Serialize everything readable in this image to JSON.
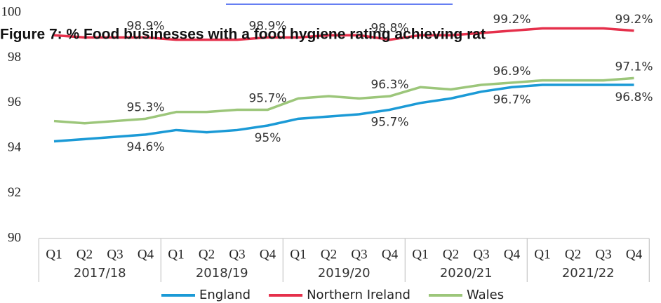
{
  "chart_data": {
    "type": "line",
    "title": "Figure 7: % Food businesses with a food hygiene rating achieving rat",
    "categories": [
      "Q1",
      "Q2",
      "Q3",
      "Q4",
      "Q1",
      "Q2",
      "Q3",
      "Q4",
      "Q1",
      "Q2",
      "Q3",
      "Q4",
      "Q1",
      "Q2",
      "Q3",
      "Q4",
      "Q1",
      "Q2",
      "Q3",
      "Q4"
    ],
    "category_groups": [
      "2017/18",
      "2018/19",
      "2019/20",
      "2020/21",
      "2021/22"
    ],
    "ylim": [
      90,
      100
    ],
    "yticks": [
      90,
      92,
      94,
      96,
      98,
      100
    ],
    "legend": "bottom",
    "series": [
      {
        "name": "England",
        "color": "#1b9ad6",
        "values": [
          94.3,
          94.4,
          94.5,
          94.6,
          94.8,
          94.7,
          94.8,
          95.0,
          95.3,
          95.4,
          95.5,
          95.7,
          96.0,
          96.2,
          96.5,
          96.7,
          96.8,
          96.8,
          96.8,
          96.8
        ],
        "value_labels": [
          null,
          null,
          null,
          "94.6%",
          null,
          null,
          null,
          "95%",
          null,
          null,
          null,
          "95.7%",
          null,
          null,
          null,
          "96.7%",
          null,
          null,
          null,
          "96.8%"
        ]
      },
      {
        "name": "Northern Ireland",
        "color": "#e5304b",
        "values": [
          99.0,
          98.9,
          98.9,
          98.9,
          98.8,
          98.8,
          98.8,
          98.9,
          98.9,
          99.0,
          99.0,
          98.8,
          99.0,
          99.0,
          99.1,
          99.2,
          99.3,
          99.3,
          99.3,
          99.2
        ],
        "value_labels": [
          null,
          null,
          null,
          "98.9%",
          null,
          null,
          null,
          "98.9%",
          null,
          null,
          null,
          "98.8%",
          null,
          null,
          null,
          "99.2%",
          null,
          null,
          null,
          "99.2%"
        ]
      },
      {
        "name": "Wales",
        "color": "#9cc67a",
        "values": [
          95.2,
          95.1,
          95.2,
          95.3,
          95.6,
          95.6,
          95.7,
          95.7,
          96.2,
          96.3,
          96.2,
          96.3,
          96.7,
          96.6,
          96.8,
          96.9,
          97.0,
          97.0,
          97.0,
          97.1
        ],
        "value_labels": [
          null,
          null,
          null,
          "95.3%",
          null,
          null,
          null,
          "95.7%",
          null,
          null,
          null,
          "96.3%",
          null,
          null,
          null,
          "96.9%",
          null,
          null,
          null,
          "97.1%"
        ]
      }
    ]
  }
}
